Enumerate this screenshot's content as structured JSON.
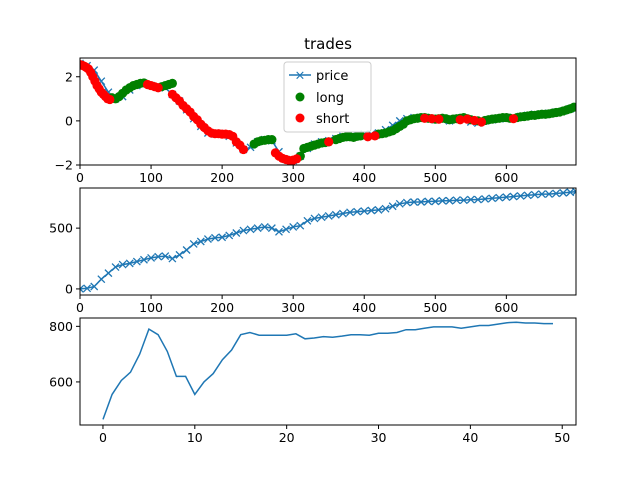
{
  "title": "trades",
  "colors": {
    "price": "#1f77b4",
    "long": "#008000",
    "short": "#ff0000"
  },
  "chart_data": [
    {
      "type": "scatter",
      "title": "trades",
      "xlim": [
        0,
        698
      ],
      "ylim": [
        -2,
        2.85
      ],
      "xticks": [
        0,
        100,
        200,
        300,
        400,
        500,
        600
      ],
      "yticks": [
        -2,
        0,
        2
      ],
      "legend": {
        "placement": "top-center",
        "entries": [
          "price",
          "long",
          "short"
        ]
      },
      "series": [
        {
          "name": "price",
          "marker": "x",
          "line": true,
          "x": [
            0,
            10,
            20,
            30,
            40,
            50,
            60,
            70,
            80,
            90,
            100,
            110,
            120,
            130,
            140,
            150,
            160,
            170,
            180,
            190,
            200,
            210,
            220,
            230,
            240,
            250,
            260,
            270,
            280,
            290,
            300,
            310,
            320,
            330,
            340,
            350,
            360,
            370,
            380,
            390,
            400,
            410,
            420,
            430,
            440,
            450,
            460,
            470,
            480,
            490,
            500,
            510,
            520,
            530,
            540,
            550,
            560,
            570,
            580,
            590,
            600,
            610,
            620,
            630,
            640,
            650,
            660,
            670,
            680,
            690,
            698
          ],
          "y": [
            2.6,
            2.5,
            2.3,
            1.8,
            1.3,
            1.0,
            1.1,
            1.4,
            1.6,
            1.7,
            1.6,
            1.55,
            1.5,
            1.2,
            0.9,
            0.5,
            0.1,
            -0.25,
            -0.55,
            -0.6,
            -0.6,
            -0.7,
            -1.0,
            -1.3,
            -1.2,
            -0.95,
            -0.85,
            -0.9,
            -1.4,
            -1.75,
            -1.8,
            -1.6,
            -1.25,
            -1.05,
            -0.95,
            -0.9,
            -0.8,
            -0.7,
            -0.75,
            -0.7,
            -0.6,
            -0.6,
            -0.55,
            -0.4,
            -0.2,
            0.0,
            0.1,
            0.15,
            0.15,
            0.1,
            0.05,
            0.05,
            0.0,
            0.1,
            0.05,
            -0.05,
            -0.1,
            0.0,
            0.05,
            0.1,
            0.1,
            0.15,
            0.2,
            0.25,
            0.3,
            0.3,
            0.35,
            0.4,
            0.45,
            0.55,
            0.65
          ]
        },
        {
          "name": "long",
          "marker": "o",
          "x": [
            45,
            50,
            55,
            60,
            65,
            70,
            75,
            80,
            85,
            90,
            115,
            120,
            125,
            130,
            245,
            250,
            255,
            260,
            265,
            270,
            310,
            315,
            320,
            325,
            330,
            335,
            340,
            345,
            350,
            360,
            365,
            370,
            375,
            380,
            385,
            390,
            395,
            420,
            425,
            430,
            435,
            440,
            445,
            450,
            455,
            460,
            465,
            470,
            475,
            480,
            485,
            490,
            495,
            500,
            505,
            510,
            515,
            520,
            525,
            530,
            535,
            540,
            545,
            550,
            560,
            570,
            575,
            580,
            585,
            590,
            595,
            600,
            605,
            615,
            620,
            625,
            630,
            635,
            640,
            645,
            650,
            655,
            660,
            665,
            670,
            675,
            680,
            685,
            690,
            695
          ],
          "y": [
            1.05,
            1.0,
            1.1,
            1.25,
            1.4,
            1.5,
            1.6,
            1.65,
            1.7,
            1.72,
            1.55,
            1.6,
            1.65,
            1.7,
            -1.05,
            -0.95,
            -0.9,
            -0.88,
            -0.85,
            -0.85,
            -1.6,
            -1.25,
            -1.2,
            -1.15,
            -1.1,
            -1.05,
            -1.0,
            -0.98,
            -0.95,
            -0.85,
            -0.8,
            -0.75,
            -0.72,
            -0.72,
            -0.75,
            -0.7,
            -0.68,
            -0.6,
            -0.58,
            -0.55,
            -0.5,
            -0.45,
            -0.35,
            -0.25,
            -0.15,
            0.0,
            0.05,
            0.1,
            0.12,
            0.15,
            0.15,
            0.12,
            0.1,
            0.08,
            0.1,
            0.12,
            0.1,
            0.05,
            0.08,
            0.1,
            0.12,
            0.15,
            0.1,
            0.05,
            0.0,
            0.02,
            0.05,
            0.08,
            0.1,
            0.12,
            0.15,
            0.15,
            0.12,
            0.15,
            0.18,
            0.2,
            0.22,
            0.25,
            0.25,
            0.28,
            0.3,
            0.3,
            0.32,
            0.35,
            0.38,
            0.4,
            0.45,
            0.5,
            0.55,
            0.62
          ]
        },
        {
          "name": "short",
          "marker": "o",
          "x": [
            0,
            3,
            6,
            9,
            12,
            15,
            18,
            21,
            24,
            27,
            30,
            33,
            36,
            39,
            42,
            95,
            100,
            105,
            110,
            130,
            135,
            140,
            145,
            150,
            155,
            160,
            165,
            170,
            175,
            180,
            185,
            190,
            195,
            200,
            205,
            210,
            215,
            220,
            225,
            230,
            275,
            280,
            285,
            290,
            295,
            300,
            305,
            350,
            405,
            415,
            485,
            495,
            505,
            535,
            545,
            555,
            565,
            610
          ],
          "y": [
            2.55,
            2.52,
            2.48,
            2.42,
            2.35,
            2.2,
            2.0,
            1.8,
            1.6,
            1.45,
            1.3,
            1.2,
            1.1,
            1.0,
            0.97,
            1.65,
            1.6,
            1.55,
            1.5,
            1.2,
            1.05,
            0.9,
            0.7,
            0.55,
            0.4,
            0.2,
            0.05,
            -0.15,
            -0.3,
            -0.45,
            -0.55,
            -0.58,
            -0.58,
            -0.6,
            -0.6,
            -0.62,
            -0.7,
            -0.95,
            -1.1,
            -1.3,
            -1.45,
            -1.6,
            -1.7,
            -1.75,
            -1.8,
            -1.78,
            -1.72,
            -0.95,
            -0.72,
            -0.68,
            0.12,
            0.1,
            0.08,
            0.05,
            0.08,
            0.02,
            -0.05,
            0.1
          ]
        }
      ]
    },
    {
      "type": "line",
      "marker": "x",
      "xlim": [
        0,
        698
      ],
      "ylim": [
        -50,
        830
      ],
      "xticks": [
        0,
        100,
        200,
        300,
        400,
        500,
        600
      ],
      "yticks": [
        0,
        500
      ],
      "series": [
        {
          "name": "",
          "x": [
            0,
            10,
            20,
            30,
            40,
            50,
            60,
            70,
            80,
            90,
            100,
            110,
            120,
            130,
            140,
            150,
            160,
            170,
            180,
            190,
            200,
            210,
            220,
            230,
            240,
            250,
            260,
            270,
            280,
            290,
            300,
            310,
            320,
            330,
            340,
            350,
            360,
            370,
            380,
            390,
            400,
            410,
            420,
            430,
            440,
            450,
            460,
            470,
            480,
            490,
            500,
            510,
            520,
            530,
            540,
            550,
            560,
            570,
            580,
            590,
            600,
            610,
            620,
            630,
            640,
            650,
            660,
            670,
            680,
            690,
            698
          ],
          "y": [
            0,
            5,
            20,
            80,
            130,
            180,
            200,
            210,
            225,
            240,
            255,
            265,
            270,
            250,
            280,
            320,
            370,
            390,
            410,
            420,
            425,
            440,
            460,
            480,
            490,
            500,
            510,
            500,
            470,
            490,
            510,
            520,
            560,
            580,
            590,
            600,
            610,
            620,
            630,
            635,
            640,
            645,
            650,
            660,
            680,
            700,
            710,
            715,
            715,
            720,
            720,
            725,
            725,
            730,
            730,
            735,
            735,
            740,
            745,
            750,
            755,
            760,
            765,
            770,
            775,
            780,
            780,
            785,
            790,
            795,
            800
          ]
        }
      ]
    },
    {
      "type": "line",
      "xlim": [
        -2.5,
        51.5
      ],
      "ylim": [
        445,
        830
      ],
      "xticks": [
        0,
        10,
        20,
        30,
        40,
        50
      ],
      "yticks": [
        600,
        800
      ],
      "series": [
        {
          "name": "",
          "x": [
            0,
            1,
            2,
            3,
            4,
            5,
            6,
            7,
            8,
            9,
            10,
            11,
            12,
            13,
            14,
            15,
            16,
            17,
            18,
            19,
            20,
            21,
            22,
            23,
            24,
            25,
            26,
            27,
            28,
            29,
            30,
            31,
            32,
            33,
            34,
            35,
            36,
            37,
            38,
            39,
            40,
            41,
            42,
            43,
            44,
            45,
            46,
            47,
            48,
            49
          ],
          "y": [
            465,
            555,
            605,
            635,
            700,
            790,
            770,
            710,
            620,
            620,
            555,
            600,
            630,
            680,
            715,
            770,
            778,
            768,
            768,
            768,
            768,
            773,
            755,
            758,
            763,
            761,
            765,
            770,
            770,
            768,
            775,
            775,
            778,
            788,
            788,
            793,
            798,
            798,
            798,
            793,
            798,
            803,
            803,
            808,
            813,
            815,
            812,
            812,
            810,
            810
          ]
        }
      ]
    }
  ]
}
